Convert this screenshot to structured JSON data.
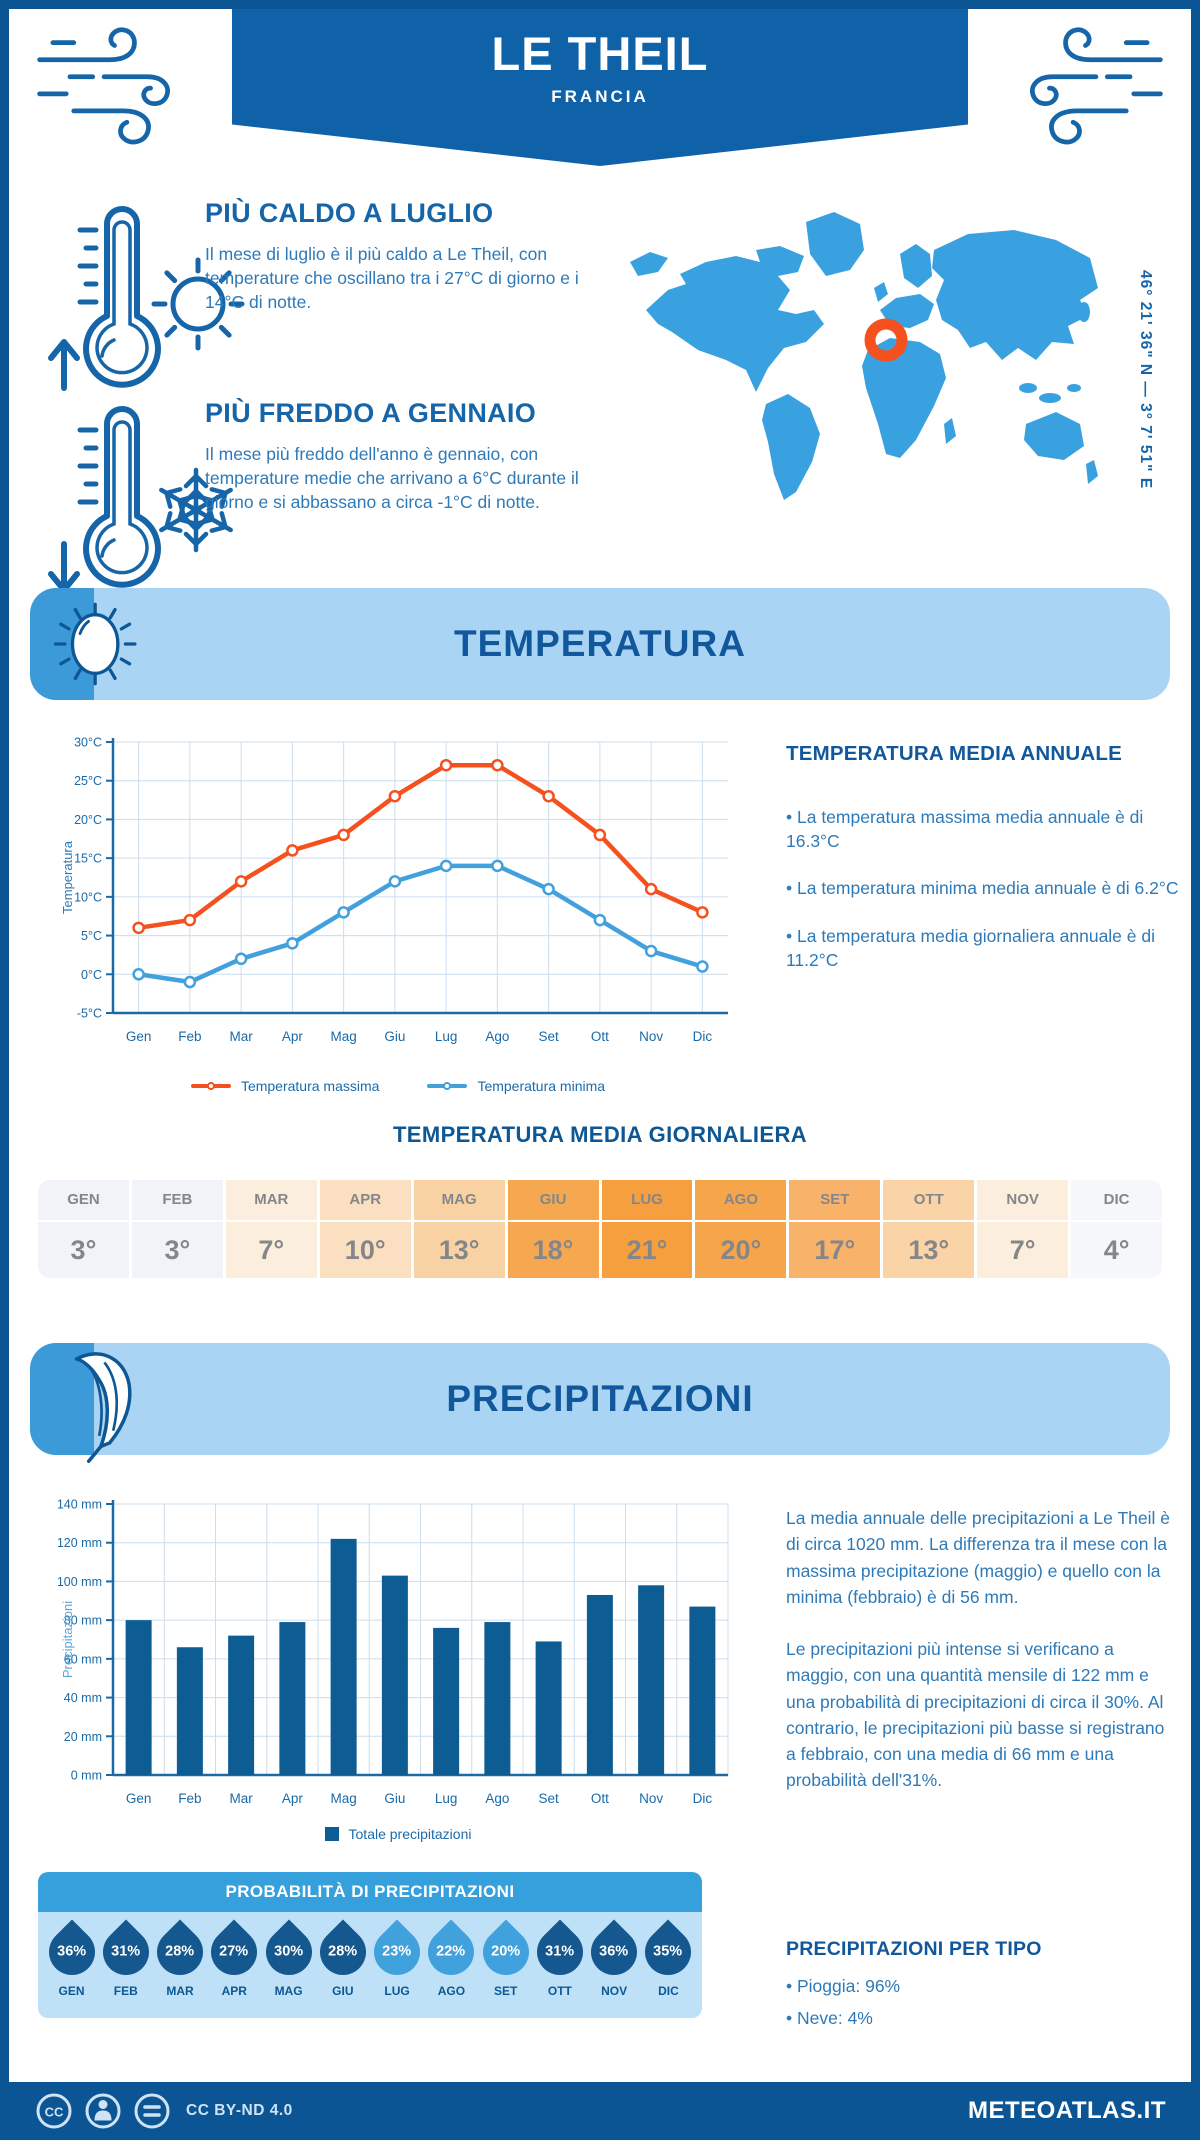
{
  "header": {
    "title": "LE THEIL",
    "subtitle": "FRANCIA",
    "coordinates": "46° 21' 36\" N — 3° 7' 51\" E"
  },
  "highlights": {
    "warm": {
      "title": "PIÙ CALDO A LUGLIO",
      "text": "Il mese di luglio è il più caldo a Le Theil, con temperature che oscillano tra i 27°C di giorno e i 14°C di notte."
    },
    "cold": {
      "title": "PIÙ FREDDO A GENNAIO",
      "text": "Il mese più freddo dell'anno è gennaio, con temperature medie che arrivano a 6°C durante il giorno e si abbassano a circa -1°C di notte."
    }
  },
  "sections": {
    "temperature": "TEMPERATURA",
    "precipitation": "PRECIPITAZIONI"
  },
  "chart_data": [
    {
      "type": "line",
      "categories": [
        "Gen",
        "Feb",
        "Mar",
        "Apr",
        "Mag",
        "Giu",
        "Lug",
        "Ago",
        "Set",
        "Ott",
        "Nov",
        "Dic"
      ],
      "series": [
        {
          "name": "Temperatura massima",
          "color": "#f4511e",
          "values": [
            6,
            7,
            12,
            16,
            18,
            23,
            27,
            27,
            23,
            18,
            11,
            8
          ]
        },
        {
          "name": "Temperatura minima",
          "color": "#42a0dd",
          "values": [
            0,
            -1,
            2,
            4,
            8,
            12,
            14,
            14,
            11,
            7,
            3,
            1
          ]
        }
      ],
      "ylabel": "Temperatura",
      "ylim": [
        -5,
        30
      ],
      "ytick_step": 5,
      "ytick_suffix": "°C",
      "grid": true,
      "legend_position": "bottom"
    },
    {
      "type": "bar",
      "categories": [
        "Gen",
        "Feb",
        "Mar",
        "Apr",
        "Mag",
        "Giu",
        "Lug",
        "Ago",
        "Set",
        "Ott",
        "Nov",
        "Dic"
      ],
      "series": [
        {
          "name": "Totale precipitazioni",
          "color": "#0e5c94",
          "values": [
            80,
            66,
            72,
            79,
            122,
            103,
            76,
            79,
            69,
            93,
            98,
            87
          ]
        }
      ],
      "ylabel": "Precipitazioni",
      "ylim": [
        0,
        140
      ],
      "ytick_step": 20,
      "ytick_suffix": " mm",
      "grid": true,
      "legend_position": "bottom"
    }
  ],
  "annual": {
    "title": "TEMPERATURA MEDIA ANNUALE",
    "bullets": [
      "• La temperatura massima media annuale è di 16.3°C",
      "• La temperatura minima media annuale è di 6.2°C",
      "• La temperatura media giornaliera annuale è di 11.2°C"
    ]
  },
  "daily_table": {
    "title": "TEMPERATURA MEDIA GIORNALIERA",
    "months": [
      "GEN",
      "FEB",
      "MAR",
      "APR",
      "MAG",
      "GIU",
      "LUG",
      "AGO",
      "SET",
      "OTT",
      "NOV",
      "DIC"
    ],
    "values": [
      "3°",
      "3°",
      "7°",
      "10°",
      "13°",
      "18°",
      "21°",
      "20°",
      "17°",
      "13°",
      "7°",
      "4°"
    ],
    "cell_colors": [
      "#f2f3f9",
      "#f2f3f9",
      "#fceedd",
      "#fbdfc1",
      "#f9d2a4",
      "#f6a851",
      "#f69f3f",
      "#f6a54b",
      "#f8b269",
      "#fad3a6",
      "#fceedd",
      "#f6f7fb"
    ]
  },
  "precip_text": {
    "p1": "La media annuale delle precipitazioni a Le Theil è di circa 1020 mm. La differenza tra il mese con la massima precipitazione (maggio) e quello con la minima (febbraio) è di 56 mm.",
    "p2": "Le precipitazioni più intense si verificano a maggio, con una quantità mensile di 122 mm e una probabilità di precipitazioni di circa il 30%. Al contrario, le precipitazioni più basse si registrano a febbraio, con una media di 66 mm e una probabilità dell'31%."
  },
  "probability": {
    "title": "PROBABILITÀ DI PRECIPITAZIONI",
    "months": [
      "GEN",
      "FEB",
      "MAR",
      "APR",
      "MAG",
      "GIU",
      "LUG",
      "AGO",
      "SET",
      "OTT",
      "NOV",
      "DIC"
    ],
    "values": [
      "36%",
      "31%",
      "28%",
      "27%",
      "30%",
      "28%",
      "23%",
      "22%",
      "20%",
      "31%",
      "36%",
      "35%"
    ],
    "shades": [
      "dark",
      "dark",
      "dark",
      "dark",
      "dark",
      "dark",
      "light",
      "light",
      "light",
      "dark",
      "dark",
      "dark"
    ],
    "drop_colors": {
      "dark": "#15578f",
      "light": "#41a1dd"
    }
  },
  "precip_type": {
    "title": "PRECIPITAZIONI PER TIPO",
    "bullets": [
      "• Pioggia: 96%",
      "• Neve: 4%"
    ]
  },
  "footer": {
    "license": "CC BY-ND 4.0",
    "site": "METEOATLAS.IT"
  },
  "colors": {
    "frame": "#0c5594",
    "banner": "#1062a8",
    "accent_orange": "#f4511e",
    "map_blue": "#3aa1e1",
    "banner_light": "#a9d4f3",
    "banner_medium": "#3d9ad8",
    "bar": "#0e5c94"
  }
}
